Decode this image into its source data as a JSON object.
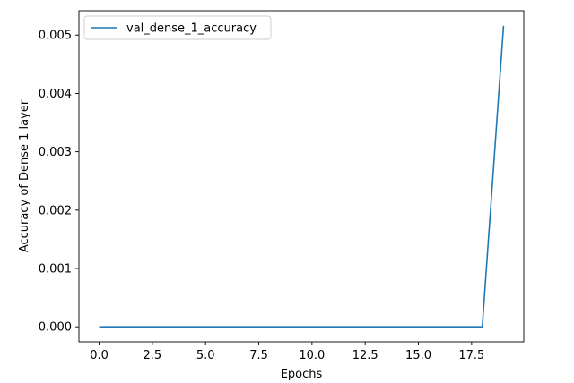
{
  "chart_data": {
    "type": "line",
    "title": "",
    "xlabel": "Epochs",
    "ylabel": "Accuracy of Dense 1 layer",
    "xlim": [
      -0.95,
      19.95
    ],
    "ylim": [
      -0.000258,
      0.005418
    ],
    "x_ticks": [
      0.0,
      2.5,
      5.0,
      7.5,
      10.0,
      12.5,
      15.0,
      17.5
    ],
    "x_tick_labels": [
      "0.0",
      "2.5",
      "5.0",
      "7.5",
      "10.0",
      "12.5",
      "15.0",
      "17.5"
    ],
    "y_ticks": [
      0.0,
      0.001,
      0.002,
      0.003,
      0.004,
      0.005
    ],
    "y_tick_labels": [
      "0.000",
      "0.001",
      "0.002",
      "0.003",
      "0.004",
      "0.005"
    ],
    "grid": false,
    "legend_position": "top-left",
    "series": [
      {
        "name": "val_dense_1_accuracy",
        "color": "#1f77b4",
        "x": [
          0,
          1,
          2,
          3,
          4,
          5,
          6,
          7,
          8,
          9,
          10,
          11,
          12,
          13,
          14,
          15,
          16,
          17,
          18,
          19
        ],
        "values": [
          0,
          0,
          0,
          0,
          0,
          0,
          0,
          0,
          0,
          0,
          0,
          0,
          0,
          0,
          0,
          0,
          0,
          0,
          0,
          0.00516
        ]
      }
    ]
  }
}
